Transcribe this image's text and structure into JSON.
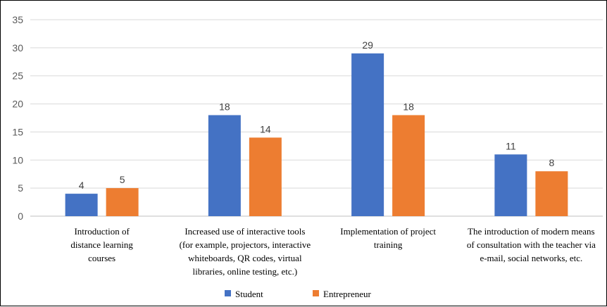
{
  "chart_data": {
    "type": "bar",
    "title": "",
    "xlabel": "",
    "ylabel": "",
    "ylim": [
      0,
      35
    ],
    "yticks": [
      0,
      5,
      10,
      15,
      20,
      25,
      30,
      35
    ],
    "grid": true,
    "legend_position": "bottom",
    "categories": [
      [
        "Introduction of",
        "distance learning",
        "courses"
      ],
      [
        "Increased use of interactive tools",
        "(for example, projectors, interactive",
        "whiteboards, QR codes, virtual",
        "libraries, online testing, etc.)"
      ],
      [
        "Implementation of project",
        "training"
      ],
      [
        "The introduction of modern means",
        "of consultation with the teacher via",
        "e-mail, social networks, etc."
      ]
    ],
    "series": [
      {
        "name": "Student",
        "color": "#4472C4",
        "values": [
          4,
          18,
          29,
          11
        ]
      },
      {
        "name": "Entrepreneur",
        "color": "#ED7D31",
        "values": [
          5,
          14,
          18,
          8
        ]
      }
    ]
  }
}
